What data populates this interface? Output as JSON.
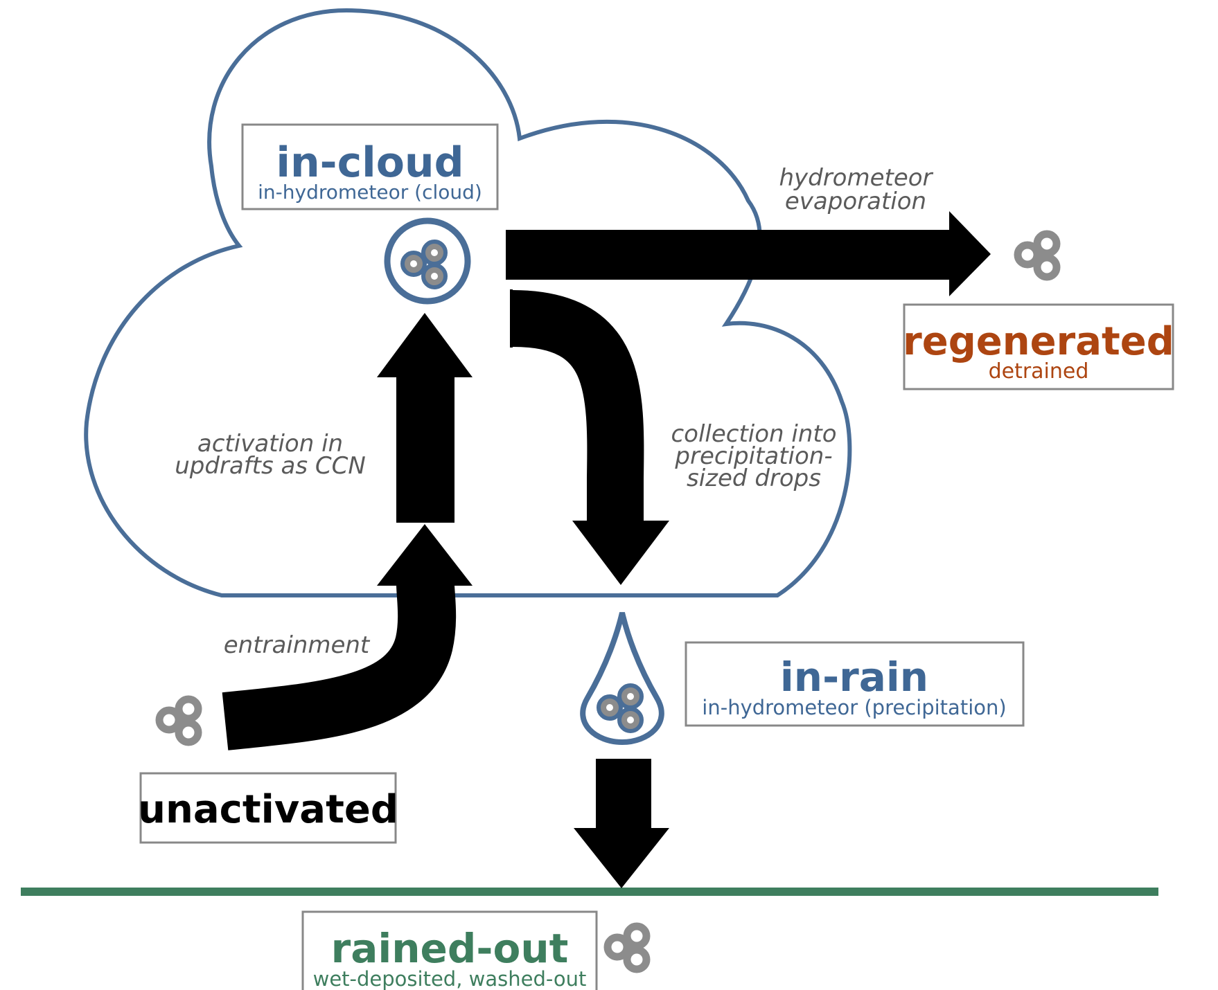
{
  "colors": {
    "cloud_outline": "#4a6e98",
    "in_cloud": "#3f6795",
    "regenerated": "#ad4511",
    "rained_out": "#3e7e5e",
    "unactivated": "#000000",
    "arrows": "#000000",
    "particles": "#8c8c8c",
    "box_border": "#888888",
    "process_text": "#5a5a5a",
    "ground": "#3e7e5e"
  },
  "states": {
    "in_cloud": {
      "title": "in-cloud",
      "subtitle": "in-hydrometeor (cloud)"
    },
    "regenerated": {
      "title": "regenerated",
      "subtitle": "detrained"
    },
    "in_rain": {
      "title": "in-rain",
      "subtitle": "in-hydrometeor (precipitation)"
    },
    "unactivated": {
      "title": "unactivated"
    },
    "rained_out": {
      "title": "rained-out",
      "subtitle": "wet-deposited, washed-out"
    }
  },
  "processes": {
    "evaporation": [
      "hydrometeor",
      "evaporation"
    ],
    "collection": [
      "collection into",
      "precipitation-",
      "sized drops"
    ],
    "activation": [
      "activation in",
      "updrafts as CCN"
    ],
    "entrainment": [
      "entrainment"
    ]
  },
  "icons": {
    "particle_cluster": "aerosol-particles-icon",
    "cloud_droplet": "cloud-droplet-icon",
    "rain_drop": "rain-drop-icon"
  }
}
